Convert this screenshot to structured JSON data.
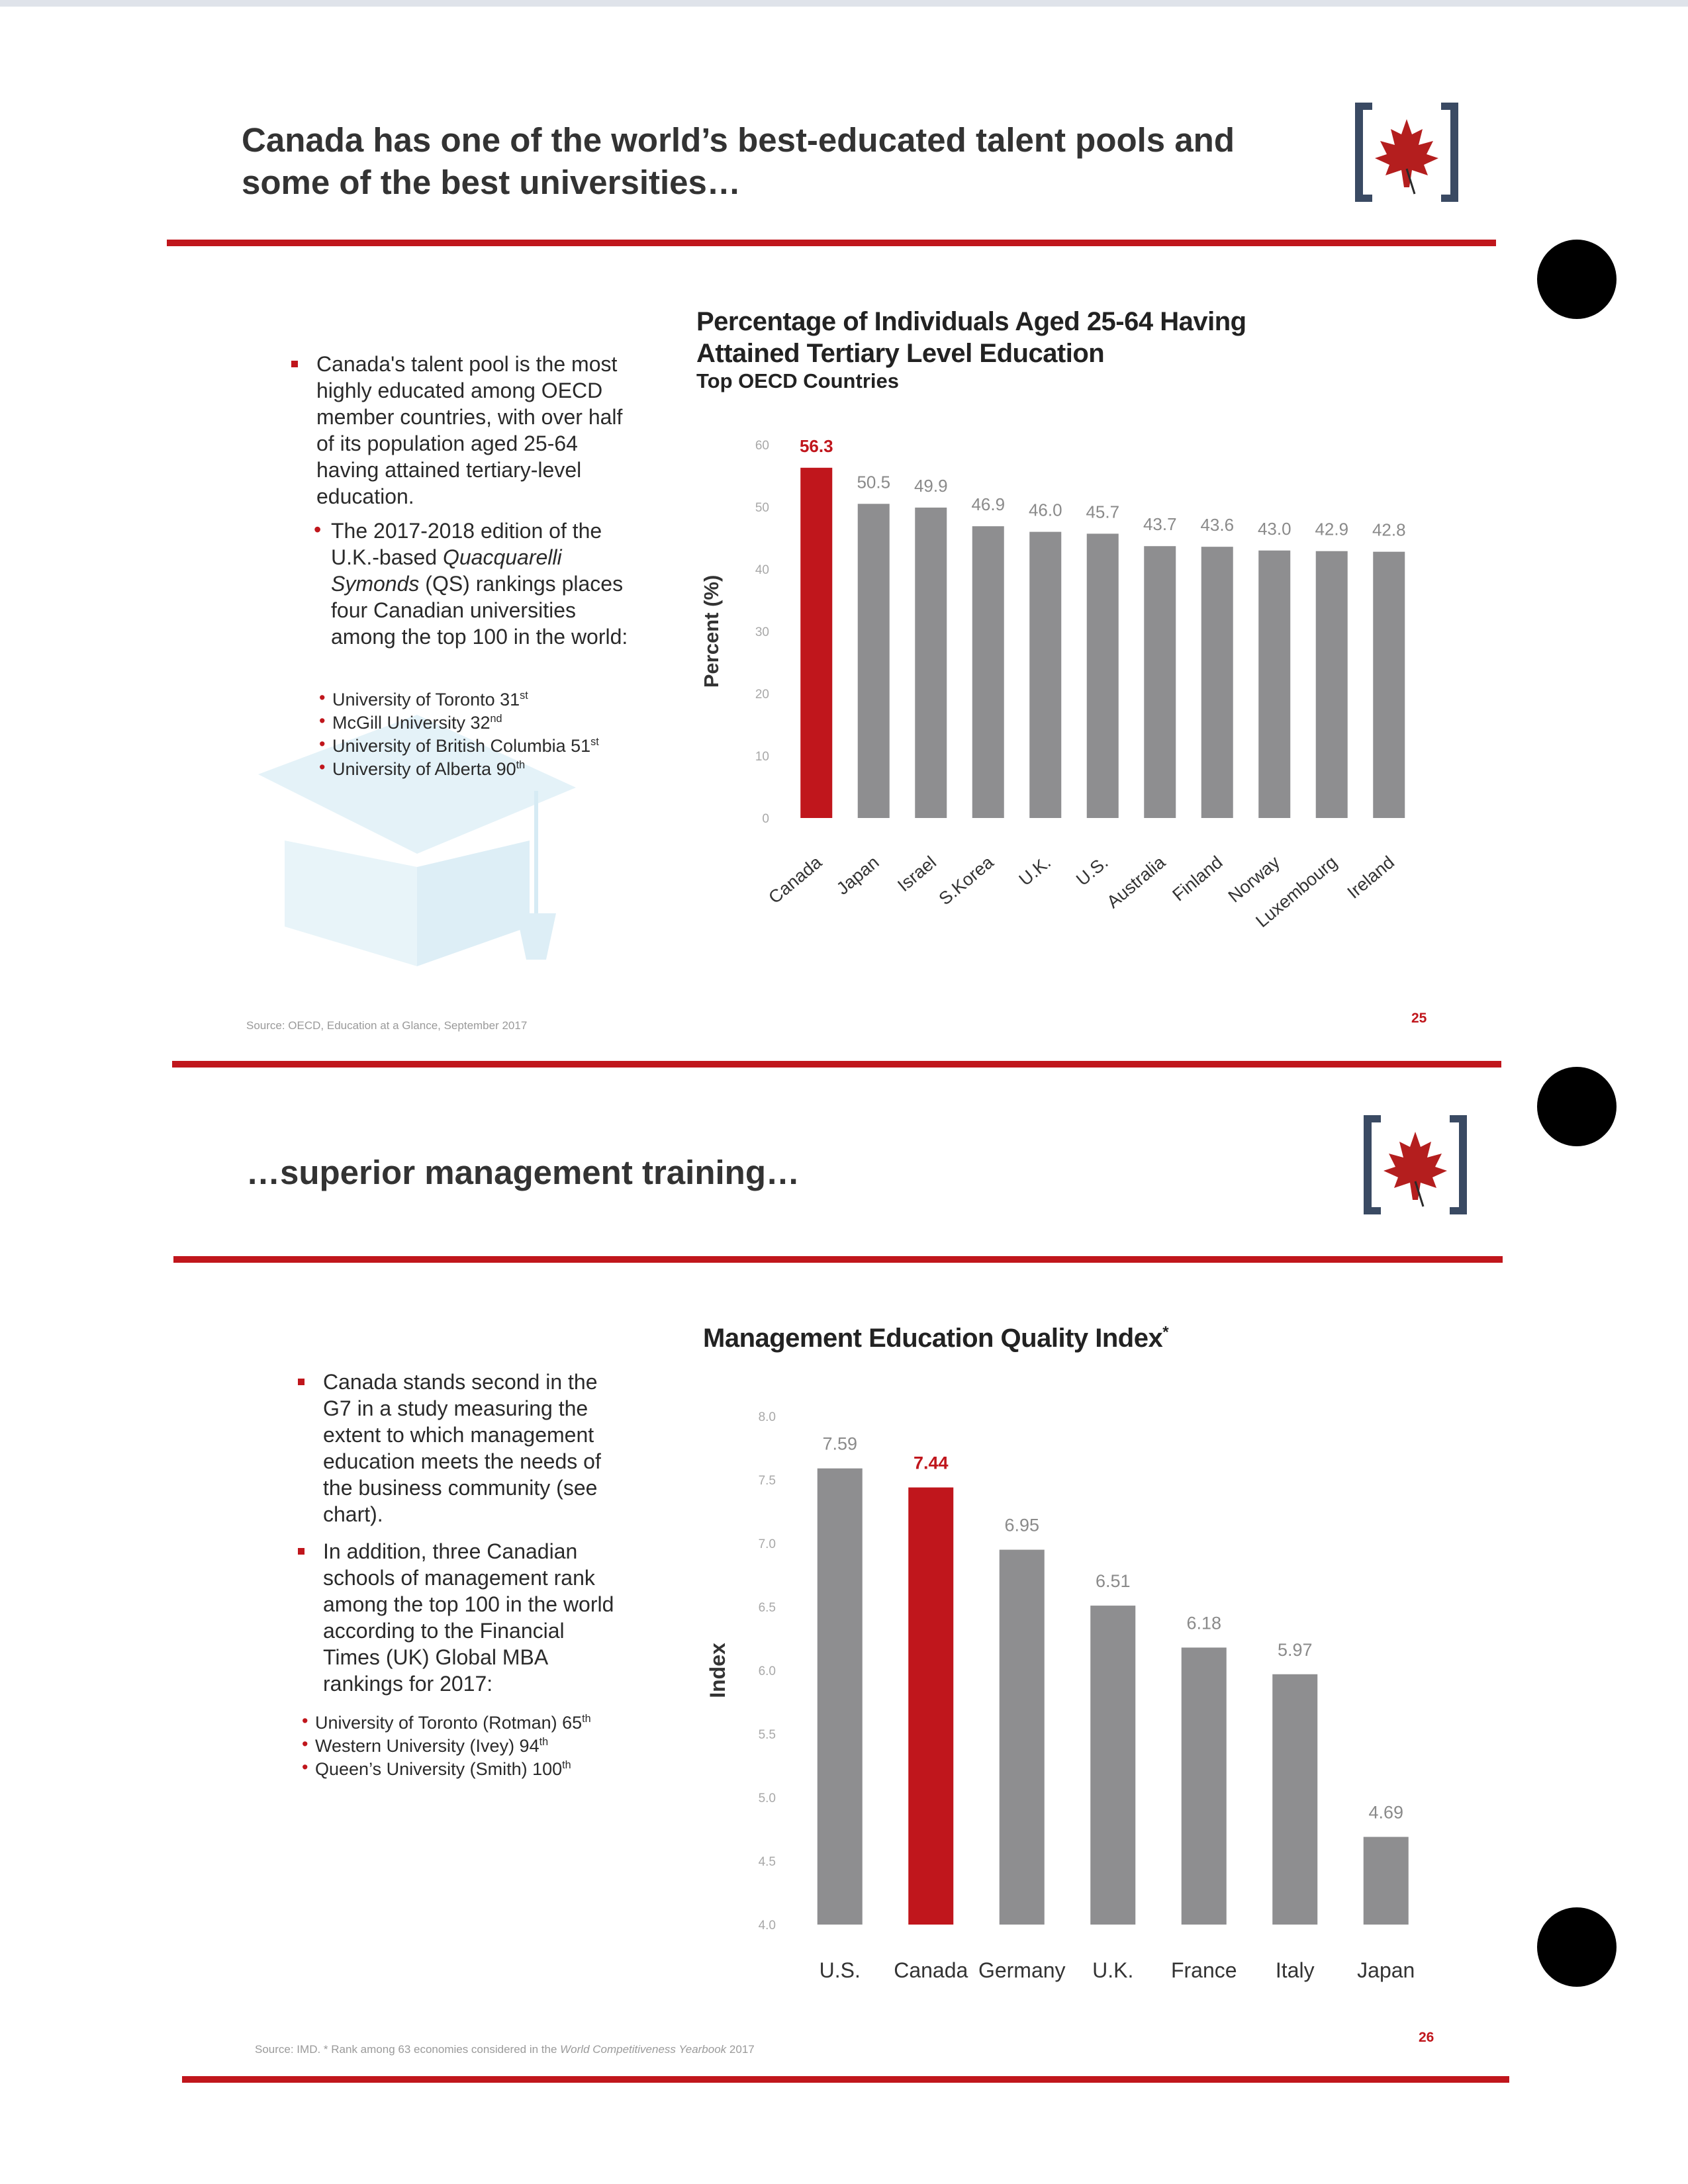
{
  "slide1": {
    "title_line1": "Canada has one of the world’s best-educated talent pools and",
    "title_line2": "some of the best universities…",
    "bullet1": "Canada's talent pool is the most highly educated among OECD member countries, with over half of its population aged 25-64 having attained tertiary-level education.",
    "bullet2_pre": "The 2017-2018 edition of the U.K.-based ",
    "bullet2_italic": "Quacquarelli Symonds",
    "bullet2_post": " (QS) rankings places four Canadian universities among the top 100 in the world:",
    "universities": [
      {
        "name": "University of Toronto 31",
        "sup": "st"
      },
      {
        "name": "McGill University 32",
        "sup": "nd"
      },
      {
        "name": "University of British Columbia 51",
        "sup": "st"
      },
      {
        "name": "University of Alberta 90",
        "sup": "th"
      }
    ],
    "source": "Source: OECD, Education at a Glance, September 2017",
    "page_number": "25"
  },
  "slide2": {
    "title": "…superior management training…",
    "bullet1": "Canada stands second in the G7 in a study measuring the extent to which management education meets the needs of the business community (see chart).",
    "bullet2": "In addition, three Canadian schools of management rank among the top 100 in the world according to the Financial Times (UK) Global MBA rankings for 2017:",
    "schools": [
      {
        "name": "University of Toronto (Rotman) 65",
        "sup": "th"
      },
      {
        "name": "Western University (Ivey) 94",
        "sup": "th"
      },
      {
        "name": "Queen’s University (Smith) 100",
        "sup": "th"
      }
    ],
    "source_pre": "Source: IMD. * Rank among 63 economies considered in the ",
    "source_italic": "World Competitiveness Yearbook",
    "source_post": " 2017",
    "page_number": "26"
  },
  "colors": {
    "highlight": "#c0161c",
    "bar": "#8e8e90",
    "title": "#333333"
  },
  "chart_data": [
    {
      "type": "bar",
      "title": "Percentage of Individuals Aged 25-64 Having Attained Tertiary Level Education",
      "subtitle": "Top OECD Countries",
      "ylabel": "Percent (%)",
      "xlabel": "",
      "ylim": [
        0,
        60
      ],
      "yticks": [
        "0",
        "10",
        "20",
        "30",
        "40",
        "50",
        "60"
      ],
      "categories": [
        "Canada",
        "Japan",
        "Israel",
        "S.Korea",
        "U.K.",
        "U.S.",
        "Australia",
        "Finland",
        "Norway",
        "Luxembourg",
        "Ireland"
      ],
      "values": [
        56.3,
        50.5,
        49.9,
        46.9,
        46.0,
        45.7,
        43.7,
        43.6,
        43.0,
        42.9,
        42.8
      ],
      "labels": [
        "56.3",
        "50.5",
        "49.9",
        "46.9",
        "46.0",
        "45.7",
        "43.7",
        "43.6",
        "43.0",
        "42.9",
        "42.8"
      ],
      "highlight_index": 0,
      "grid": false
    },
    {
      "type": "bar",
      "title": "Management Education Quality Index",
      "title_sup": "*",
      "ylabel": "Index",
      "xlabel": "",
      "ylim": [
        4.0,
        8.0
      ],
      "yticks": [
        "4.0",
        "4.5",
        "5.0",
        "5.5",
        "6.0",
        "6.5",
        "7.0",
        "7.5",
        "8.0"
      ],
      "categories": [
        "U.S.",
        "Canada",
        "Germany",
        "U.K.",
        "France",
        "Italy",
        "Japan"
      ],
      "values": [
        7.59,
        7.44,
        6.95,
        6.51,
        6.18,
        5.97,
        4.69
      ],
      "labels": [
        "7.59",
        "7.44",
        "6.95",
        "6.51",
        "6.18",
        "5.97",
        "4.69"
      ],
      "highlight_index": 1,
      "grid": false
    }
  ]
}
